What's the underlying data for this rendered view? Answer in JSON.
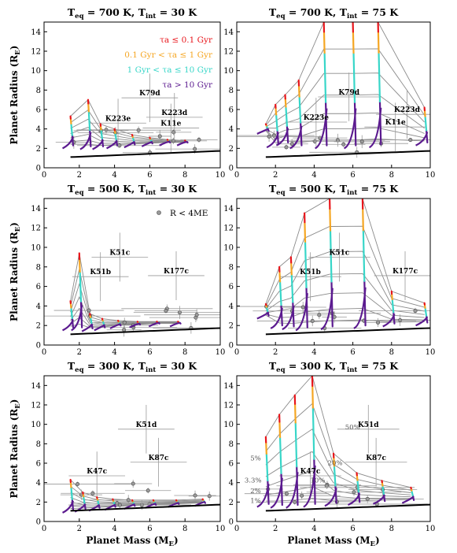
{
  "chart_data": [
    {
      "type": "line",
      "title": "T_eq = 700 K, T_int = 30 K",
      "title_main": "T",
      "title_sub1": "eq",
      "title_mid": " = 700 K, T",
      "title_sub2": "int",
      "title_end": " = 30 K",
      "ylabel": "Planet Radius (R",
      "ylabel_sub": "E",
      "ylabel_end": ")",
      "xlabel": "",
      "xlim": [
        0,
        10
      ],
      "ylim": [
        0,
        15
      ],
      "x_ticks": [
        "0",
        "2",
        "4",
        "6",
        "8",
        "10"
      ],
      "y_ticks": [
        "0",
        "2",
        "4",
        "6",
        "8",
        "10",
        "12",
        "14"
      ],
      "legend": {
        "placement": "top-right",
        "entries": [
          {
            "label": "τa ≤ 0.1 Gyr",
            "color": "#e8151b"
          },
          {
            "label": "0.1 Gyr < τa ≤ 1 Gyr",
            "color": "#f5a623"
          },
          {
            "label": "1 Gyr < τa ≤ 10 Gyr",
            "color": "#38d6c8"
          },
          {
            "label": "τa > 10 Gyr",
            "color": "#5b1a8f"
          }
        ]
      },
      "planets": [
        {
          "name": "K79d",
          "x": 6.0,
          "y": 7.2
        },
        {
          "name": "K223e",
          "x": 4.2,
          "y": 4.6
        },
        {
          "name": "K223d",
          "x": 7.4,
          "y": 5.2
        },
        {
          "name": "K11e",
          "x": 7.2,
          "y": 4.1
        }
      ],
      "tracks": [
        {
          "x": 1.5,
          "r_bottom": 2.3,
          "r_top": 5.3
        },
        {
          "x": 2.5,
          "r_bottom": 2.2,
          "r_top": 7.0
        },
        {
          "x": 3.2,
          "r_bottom": 2.2,
          "r_top": 4.5
        },
        {
          "x": 4.0,
          "r_bottom": 2.3,
          "r_top": 4.0
        },
        {
          "x": 5.0,
          "r_bottom": 2.4,
          "r_top": 3.4
        },
        {
          "x": 6.0,
          "r_bottom": 2.5,
          "r_top": 3.1
        },
        {
          "x": 7.0,
          "r_bottom": 2.6,
          "r_top": 2.9
        },
        {
          "x": 8.0,
          "r_bottom": 2.6,
          "r_top": 2.8
        }
      ]
    },
    {
      "type": "line",
      "title": "T_eq = 700 K, T_int = 75 K",
      "title_main": "T",
      "title_sub1": "eq",
      "title_mid": " = 700 K, T",
      "title_sub2": "int",
      "title_end": " = 75 K",
      "ylabel": "",
      "xlabel": "",
      "xlim": [
        0,
        10
      ],
      "ylim": [
        0,
        15
      ],
      "x_ticks": [
        "0",
        "2",
        "4",
        "6",
        "8",
        "10"
      ],
      "y_ticks": [
        "0",
        "2",
        "4",
        "6",
        "8",
        "10",
        "12",
        "14"
      ],
      "planets": [
        {
          "name": "K79d",
          "x": 5.8,
          "y": 7.3
        },
        {
          "name": "K223e",
          "x": 4.1,
          "y": 4.7
        },
        {
          "name": "K223d",
          "x": 8.8,
          "y": 5.5
        },
        {
          "name": "K11e",
          "x": 8.2,
          "y": 4.2
        }
      ],
      "tracks": [
        {
          "x": 1.5,
          "r_bottom": 3.8,
          "r_top": 4.5
        },
        {
          "x": 2.0,
          "r_bottom": 2.4,
          "r_top": 6.5
        },
        {
          "x": 2.5,
          "r_bottom": 2.6,
          "r_top": 7.5
        },
        {
          "x": 3.2,
          "r_bottom": 2.3,
          "r_top": 9.0
        },
        {
          "x": 4.5,
          "r_bottom": 2.3,
          "r_top": 15.0
        },
        {
          "x": 6.0,
          "r_bottom": 2.3,
          "r_top": 15.0
        },
        {
          "x": 7.3,
          "r_bottom": 2.4,
          "r_top": 15.0
        },
        {
          "x": 9.7,
          "r_bottom": 2.6,
          "r_top": 6.2
        }
      ]
    },
    {
      "type": "line",
      "title": "T_eq = 500 K, T_int = 30 K",
      "title_main": "T",
      "title_sub1": "eq",
      "title_mid": " = 500 K, T",
      "title_sub2": "int",
      "title_end": " = 30 K",
      "ylabel": "Planet Radius (R",
      "ylabel_sub": "E",
      "ylabel_end": ")",
      "xlabel": "",
      "xlim": [
        0,
        10
      ],
      "ylim": [
        0,
        15
      ],
      "x_ticks": [
        "0",
        "2",
        "4",
        "6",
        "8",
        "10"
      ],
      "y_ticks": [
        "0",
        "2",
        "4",
        "6",
        "8",
        "10",
        "12",
        "14"
      ],
      "legend": {
        "placement": "top-right",
        "entries": [
          {
            "label": "R < 4ME",
            "color": "#888888"
          }
        ]
      },
      "planets": [
        {
          "name": "K51c",
          "x": 4.3,
          "y": 9.0
        },
        {
          "name": "K51b",
          "x": 3.2,
          "y": 7.0
        },
        {
          "name": "K177c",
          "x": 7.5,
          "y": 7.1
        }
      ],
      "tracks": [
        {
          "x": 1.5,
          "r_bottom": 1.8,
          "r_top": 4.5
        },
        {
          "x": 2.0,
          "r_bottom": 1.8,
          "r_top": 9.4
        },
        {
          "x": 2.6,
          "r_bottom": 1.7,
          "r_top": 3.2
        },
        {
          "x": 3.3,
          "r_bottom": 1.8,
          "r_top": 2.7
        },
        {
          "x": 4.2,
          "r_bottom": 2.0,
          "r_top": 2.5
        },
        {
          "x": 5.3,
          "r_bottom": 2.1,
          "r_top": 2.4
        },
        {
          "x": 6.4,
          "r_bottom": 2.2,
          "r_top": 2.4
        },
        {
          "x": 7.6,
          "r_bottom": 2.2,
          "r_top": 2.4
        }
      ]
    },
    {
      "type": "line",
      "title": "T_eq = 500 K, T_int = 75 K",
      "title_main": "T",
      "title_sub1": "eq",
      "title_mid": " = 500 K, T",
      "title_sub2": "int",
      "title_end": " = 75 K",
      "ylabel": "",
      "xlabel": "",
      "xlim": [
        0,
        10
      ],
      "ylim": [
        0,
        15
      ],
      "x_ticks": [
        "0",
        "2",
        "4",
        "6",
        "8",
        "10"
      ],
      "y_ticks": [
        "0",
        "2",
        "4",
        "6",
        "8",
        "10",
        "12",
        "14"
      ],
      "planets": [
        {
          "name": "K51c",
          "x": 5.3,
          "y": 9.0
        },
        {
          "name": "K51b",
          "x": 3.8,
          "y": 7.0
        },
        {
          "name": "K177c",
          "x": 8.7,
          "y": 7.1
        }
      ],
      "tracks": [
        {
          "x": 1.5,
          "r_bottom": 3.0,
          "r_top": 4.2
        },
        {
          "x": 2.2,
          "r_bottom": 2.0,
          "r_top": 8.0
        },
        {
          "x": 2.8,
          "r_bottom": 1.9,
          "r_top": 9.0
        },
        {
          "x": 3.5,
          "r_bottom": 1.8,
          "r_top": 13.5
        },
        {
          "x": 4.8,
          "r_bottom": 1.9,
          "r_top": 15.0
        },
        {
          "x": 6.5,
          "r_bottom": 2.0,
          "r_top": 15.0
        },
        {
          "x": 8.0,
          "r_bottom": 2.2,
          "r_top": 5.5
        },
        {
          "x": 9.7,
          "r_bottom": 2.3,
          "r_top": 4.3
        }
      ]
    },
    {
      "type": "line",
      "title": "T_eq = 300 K, T_int = 30 K",
      "title_main": "T",
      "title_sub1": "eq",
      "title_mid": " = 300 K, T",
      "title_sub2": "int",
      "title_end": " = 30 K",
      "ylabel": "Planet Radius (R",
      "ylabel_sub": "E",
      "ylabel_end": ")",
      "xlabel": "Planet Mass (M",
      "xlabel_sub": "E",
      "xlabel_end": ")",
      "xlim": [
        0,
        10
      ],
      "ylim": [
        0,
        15
      ],
      "x_ticks": [
        "0",
        "2",
        "4",
        "6",
        "8",
        "10"
      ],
      "y_ticks": [
        "0",
        "2",
        "4",
        "6",
        "8",
        "10",
        "12",
        "14"
      ],
      "planets": [
        {
          "name": "K51d",
          "x": 5.8,
          "y": 9.5
        },
        {
          "name": "K87c",
          "x": 6.5,
          "y": 6.1
        },
        {
          "name": "K47c",
          "x": 3.0,
          "y": 4.7
        }
      ],
      "tracks": [
        {
          "x": 1.5,
          "r_bottom": 1.2,
          "r_top": 4.3
        },
        {
          "x": 2.2,
          "r_bottom": 1.3,
          "r_top": 3.0
        },
        {
          "x": 3.0,
          "r_bottom": 1.4,
          "r_top": 2.5
        },
        {
          "x": 3.9,
          "r_bottom": 1.5,
          "r_top": 2.3
        },
        {
          "x": 5.0,
          "r_bottom": 1.6,
          "r_top": 2.2
        },
        {
          "x": 6.2,
          "r_bottom": 1.7,
          "r_top": 2.2
        },
        {
          "x": 7.5,
          "r_bottom": 1.8,
          "r_top": 2.2
        },
        {
          "x": 9.0,
          "r_bottom": 1.9,
          "r_top": 2.3
        }
      ]
    },
    {
      "type": "line",
      "title": "T_eq = 300 K, T_int = 75 K",
      "title_main": "T",
      "title_sub1": "eq",
      "title_mid": " = 300 K, T",
      "title_sub2": "int",
      "title_end": " = 75 K",
      "ylabel": "",
      "xlabel": "Planet Mass (M",
      "xlabel_sub": "E",
      "xlabel_end": ")",
      "xlim": [
        0,
        10
      ],
      "ylim": [
        0,
        15
      ],
      "x_ticks": [
        "0",
        "2",
        "4",
        "6",
        "8",
        "10"
      ],
      "y_ticks": [
        "0",
        "2",
        "4",
        "6",
        "8",
        "10",
        "12",
        "14"
      ],
      "planets": [
        {
          "name": "K51d",
          "x": 6.8,
          "y": 9.5
        },
        {
          "name": "K87c",
          "x": 7.2,
          "y": 6.1
        },
        {
          "name": "K47c",
          "x": 3.8,
          "y": 4.7
        }
      ],
      "percent_labels": [
        {
          "text": "1%",
          "x": 0.7,
          "y": 1.9
        },
        {
          "text": "2%",
          "x": 0.7,
          "y": 2.9
        },
        {
          "text": "3.3%",
          "x": 0.4,
          "y": 4.0
        },
        {
          "text": "5%",
          "x": 0.7,
          "y": 6.3
        },
        {
          "text": "10%",
          "x": 3.8,
          "y": 4.0
        },
        {
          "text": "20%",
          "x": 4.7,
          "y": 5.8
        },
        {
          "text": "50%",
          "x": 5.6,
          "y": 9.5
        }
      ],
      "tracks": [
        {
          "x": 1.5,
          "r_bottom": 1.8,
          "r_top": 8.7
        },
        {
          "x": 2.2,
          "r_bottom": 1.7,
          "r_top": 11.0
        },
        {
          "x": 3.0,
          "r_bottom": 1.7,
          "r_top": 13.0
        },
        {
          "x": 3.9,
          "r_bottom": 1.8,
          "r_top": 15.0
        },
        {
          "x": 5.0,
          "r_bottom": 1.9,
          "r_top": 7.0
        },
        {
          "x": 6.2,
          "r_bottom": 2.0,
          "r_top": 5.0
        },
        {
          "x": 7.5,
          "r_bottom": 2.1,
          "r_top": 4.2
        },
        {
          "x": 9.0,
          "r_bottom": 2.2,
          "r_top": 3.5
        }
      ]
    }
  ]
}
